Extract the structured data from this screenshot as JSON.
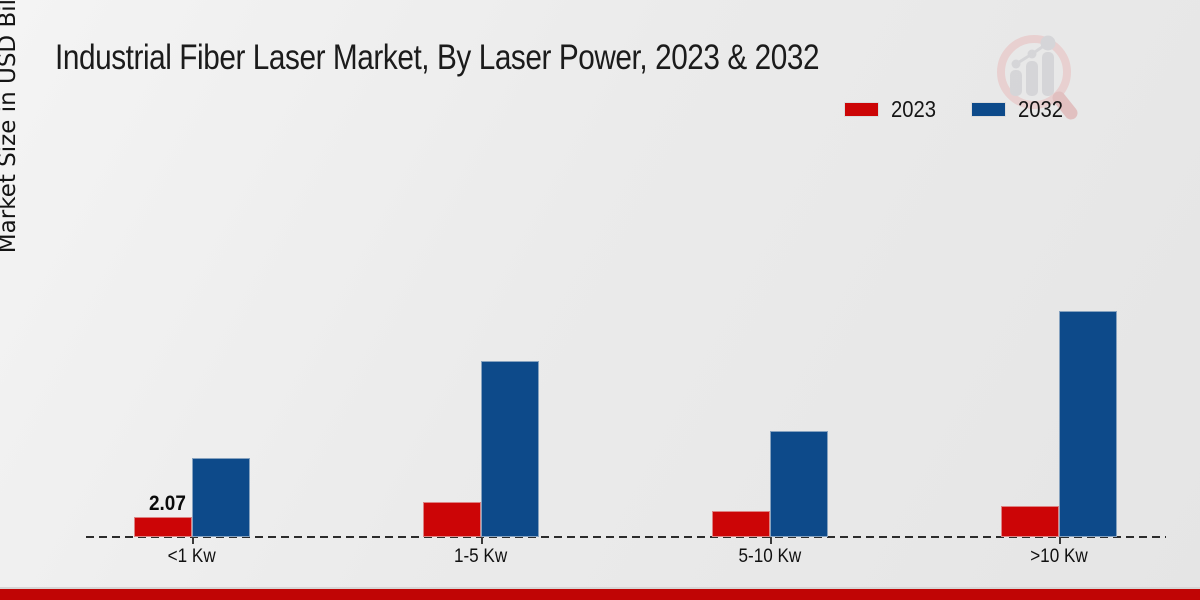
{
  "header": {
    "title": "Industrial Fiber Laser Market, By Laser Power, 2023 & 2032"
  },
  "chart_data": {
    "type": "bar",
    "title": "Industrial Fiber Laser Market, By Laser Power, 2023 & 2032",
    "ylabel": "Market Size in USD Billion",
    "xlabel": "",
    "categories": [
      "<1 Kw",
      "1-5 Kw",
      "5-10 Kw",
      ">10 Kw"
    ],
    "series": [
      {
        "name": "2023",
        "color": "#cc0506",
        "values": [
          2.07,
          3.57,
          2.65,
          3.19
        ]
      },
      {
        "name": "2032",
        "color": "#0d4a8a",
        "values": [
          8.05,
          17.94,
          10.81,
          23.04
        ]
      }
    ],
    "data_labels": [
      {
        "series_index": 0,
        "category_index": 0,
        "text": "2.07"
      }
    ],
    "ylim": [
      0,
      25
    ],
    "grid": false,
    "legend_position": "top-right",
    "baseline_style": "dashed"
  },
  "colors": {
    "series_2023": "#cc0506",
    "series_2032": "#0d4a8a",
    "footer_bar": "#c00505",
    "background": "#ebebeb",
    "title_text": "#1b1b1b"
  },
  "watermark": {
    "icon": "magnifier-bar-chart-logo"
  }
}
